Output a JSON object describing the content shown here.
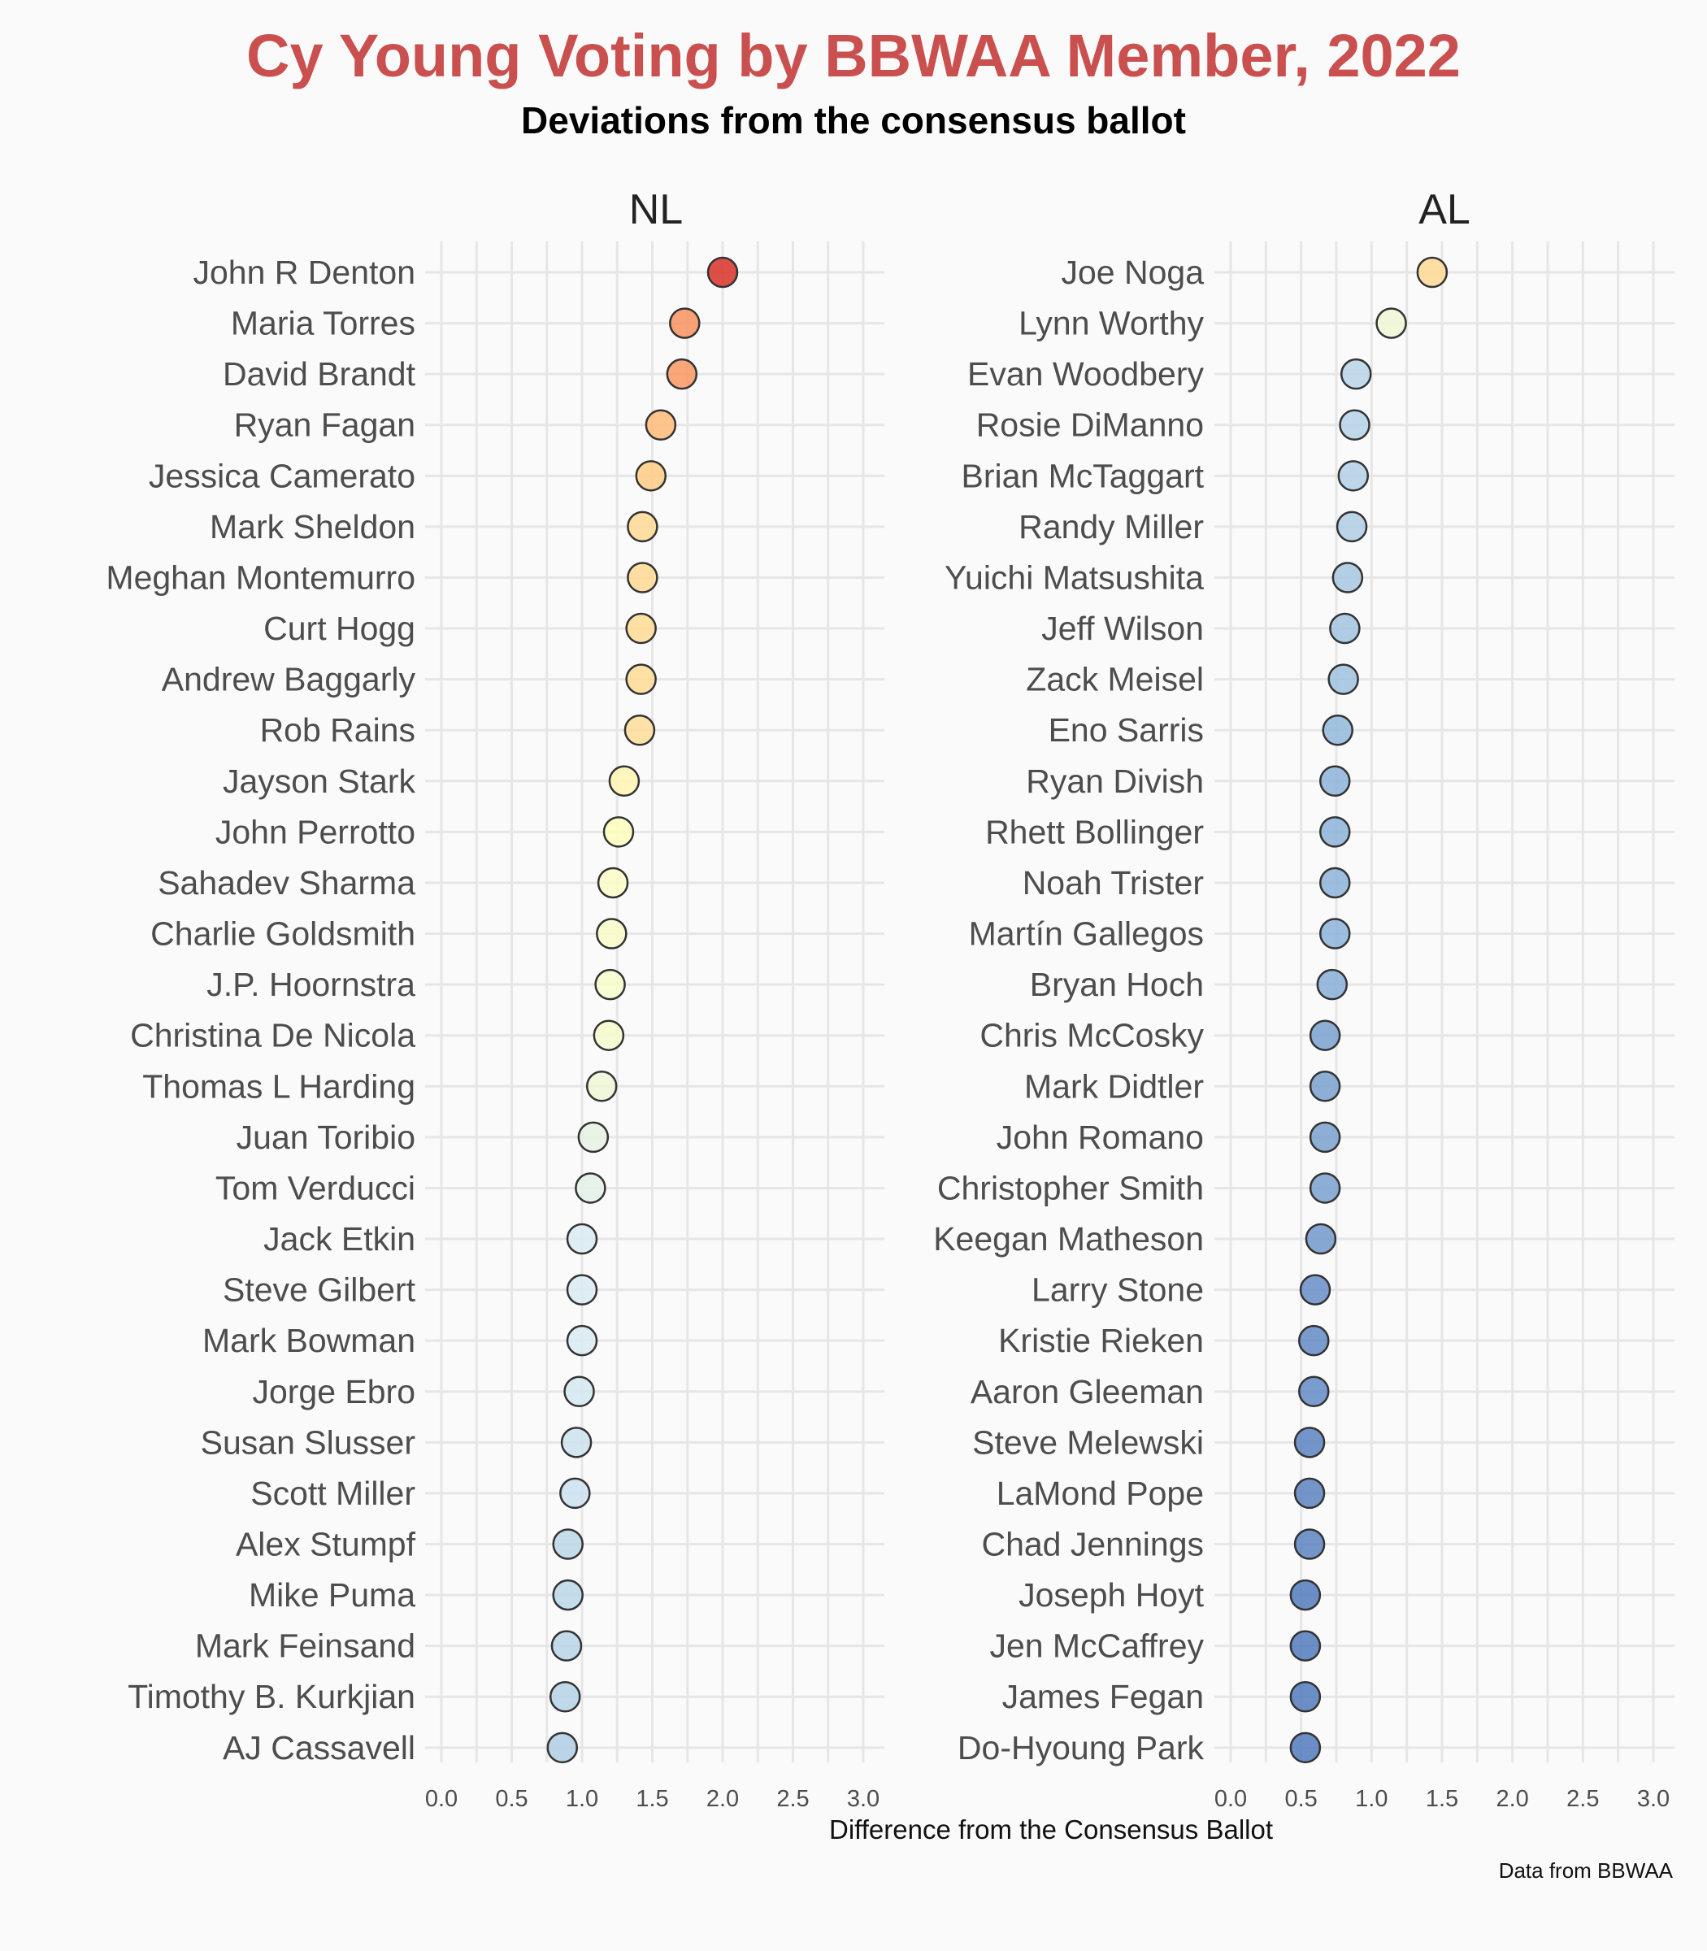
{
  "title": "Cy Young Voting by BBWAA Member, 2022",
  "subtitle": "Deviations from the consensus ballot",
  "xlabel": "Difference from the Consensus Ballot",
  "caption": "Data from BBWAA",
  "chart_data": {
    "type": "scatter",
    "xlim": [
      0,
      3.0
    ],
    "x_ticks": [
      "0.0",
      "0.5",
      "1.0",
      "1.5",
      "2.0",
      "2.5",
      "3.0"
    ],
    "color_scale": {
      "min": 0.5,
      "max": 2.0,
      "stops": [
        "#4a72b8",
        "#8fb6d9",
        "#d9ebf2",
        "#ffffbf",
        "#fec980",
        "#f88c5c",
        "#d73027"
      ]
    },
    "panels": [
      {
        "name": "NL",
        "points": [
          {
            "label": "John R Denton",
            "x": 2.0
          },
          {
            "label": "Maria Torres",
            "x": 1.73
          },
          {
            "label": "David Brandt",
            "x": 1.71
          },
          {
            "label": "Ryan Fagan",
            "x": 1.56
          },
          {
            "label": "Jessica Camerato",
            "x": 1.49
          },
          {
            "label": "Mark Sheldon",
            "x": 1.43
          },
          {
            "label": "Meghan Montemurro",
            "x": 1.43
          },
          {
            "label": "Curt Hogg",
            "x": 1.42
          },
          {
            "label": "Andrew Baggarly",
            "x": 1.42
          },
          {
            "label": "Rob Rains",
            "x": 1.41
          },
          {
            "label": "Jayson Stark",
            "x": 1.3
          },
          {
            "label": "John Perrotto",
            "x": 1.26
          },
          {
            "label": "Sahadev Sharma",
            "x": 1.22
          },
          {
            "label": "Charlie Goldsmith",
            "x": 1.21
          },
          {
            "label": "J.P. Hoornstra",
            "x": 1.2
          },
          {
            "label": "Christina De Nicola",
            "x": 1.19
          },
          {
            "label": "Thomas L Harding",
            "x": 1.14
          },
          {
            "label": "Juan Toribio",
            "x": 1.08
          },
          {
            "label": "Tom Verducci",
            "x": 1.06
          },
          {
            "label": "Jack Etkin",
            "x": 1.0
          },
          {
            "label": "Steve Gilbert",
            "x": 1.0
          },
          {
            "label": "Mark Bowman",
            "x": 1.0
          },
          {
            "label": "Jorge Ebro",
            "x": 0.98
          },
          {
            "label": "Susan Slusser",
            "x": 0.96
          },
          {
            "label": "Scott Miller",
            "x": 0.95
          },
          {
            "label": "Alex Stumpf",
            "x": 0.9
          },
          {
            "label": "Mike Puma",
            "x": 0.9
          },
          {
            "label": "Mark Feinsand",
            "x": 0.89
          },
          {
            "label": "Timothy B. Kurkjian",
            "x": 0.88
          },
          {
            "label": "AJ Cassavell",
            "x": 0.86
          }
        ]
      },
      {
        "name": "AL",
        "points": [
          {
            "label": "Joe Noga",
            "x": 1.43
          },
          {
            "label": "Lynn Worthy",
            "x": 1.14
          },
          {
            "label": "Evan Woodbery",
            "x": 0.89
          },
          {
            "label": "Rosie DiManno",
            "x": 0.88
          },
          {
            "label": "Brian McTaggart",
            "x": 0.87
          },
          {
            "label": "Randy Miller",
            "x": 0.86
          },
          {
            "label": "Yuichi Matsushita",
            "x": 0.83
          },
          {
            "label": "Jeff Wilson",
            "x": 0.81
          },
          {
            "label": "Zack Meisel",
            "x": 0.8
          },
          {
            "label": "Eno Sarris",
            "x": 0.76
          },
          {
            "label": "Ryan Divish",
            "x": 0.74
          },
          {
            "label": "Rhett Bollinger",
            "x": 0.74
          },
          {
            "label": "Noah Trister",
            "x": 0.74
          },
          {
            "label": "Martín Gallegos",
            "x": 0.74
          },
          {
            "label": "Bryan Hoch",
            "x": 0.72
          },
          {
            "label": "Chris McCosky",
            "x": 0.67
          },
          {
            "label": "Mark Didtler",
            "x": 0.67
          },
          {
            "label": "John Romano",
            "x": 0.67
          },
          {
            "label": "Christopher Smith",
            "x": 0.67
          },
          {
            "label": "Keegan Matheson",
            "x": 0.64
          },
          {
            "label": "Larry Stone",
            "x": 0.6
          },
          {
            "label": "Kristie Rieken",
            "x": 0.59
          },
          {
            "label": "Aaron Gleeman",
            "x": 0.59
          },
          {
            "label": "Steve Melewski",
            "x": 0.56
          },
          {
            "label": "LaMond Pope",
            "x": 0.56
          },
          {
            "label": "Chad Jennings",
            "x": 0.56
          },
          {
            "label": "Joseph Hoyt",
            "x": 0.53
          },
          {
            "label": "Jen McCaffrey",
            "x": 0.53
          },
          {
            "label": "James Fegan",
            "x": 0.53
          },
          {
            "label": "Do-Hyoung Park",
            "x": 0.53
          }
        ]
      }
    ]
  }
}
